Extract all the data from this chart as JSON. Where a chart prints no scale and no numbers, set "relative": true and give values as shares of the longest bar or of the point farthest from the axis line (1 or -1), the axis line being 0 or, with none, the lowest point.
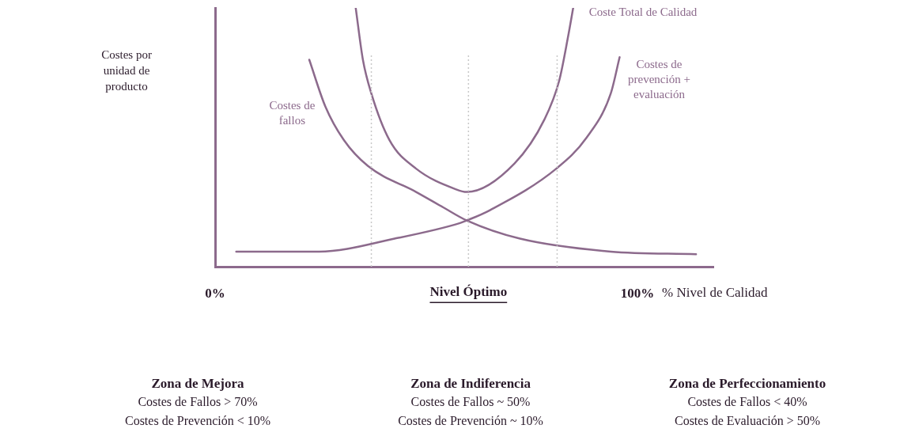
{
  "chart_data": {
    "type": "line",
    "relative": true,
    "xlabel": "% Nivel de Calidad",
    "ylabel": "Costes por unidad de producto",
    "xlim": [
      0,
      118
    ],
    "xticks": [
      {
        "value": 0,
        "label": "0%"
      },
      {
        "value": 100,
        "label": "100%"
      }
    ],
    "tick_labels": "x",
    "grid": false,
    "legend": false,
    "marker": "none",
    "line_style": "solid",
    "series": [
      {
        "name": "Costes de fallos",
        "color": "#8c6a8c",
        "x": [
          22.3,
          26.1,
          30.5,
          36.2,
          47.6,
          54.1,
          59.6,
          72.2,
          93.7,
          113.9
        ],
        "values": [
          0.8,
          0.62,
          0.49,
          0.39,
          0.29,
          0.23,
          0.18,
          0.11,
          0.06,
          0.05
        ]
      },
      {
        "name": "Coste Total de Calidad",
        "color": "#8c6a8c",
        "x": [
          33.3,
          35,
          37,
          41.3,
          47.6,
          57.1,
          59.6,
          70.9,
          78,
          81.5,
          83.6,
          84.8
        ],
        "values": [
          1,
          0.8,
          0.67,
          0.49,
          0.38,
          0.3,
          0.29,
          0.4,
          0.57,
          0.72,
          0.89,
          1
        ]
      },
      {
        "name": "Costes de prevención + evaluación",
        "color": "#8c6a8c",
        "x": [
          5,
          24.6,
          42.5,
          58,
          59.6,
          65.1,
          80.8,
          88,
          93.7,
          95.8
        ],
        "values": [
          0.06,
          0.06,
          0.11,
          0.17,
          0.18,
          0.22,
          0.38,
          0.5,
          0.67,
          0.81
        ]
      }
    ],
    "ref_lines": [
      {
        "axis": "x",
        "value": 37,
        "color": "#c8c8c8",
        "line_style": "dotted"
      },
      {
        "axis": "x",
        "value": 60,
        "label": "Nivel Óptimo",
        "color": "#c8c8c8",
        "line_style": "dotted"
      },
      {
        "axis": "x",
        "value": 81,
        "color": "#c8c8c8",
        "line_style": "dotted"
      }
    ],
    "annotations": [
      "Zona de Mejora",
      "Costes de Fallos > 70%",
      "Costes de Prevención < 10%",
      "Zona de Indiferencia",
      "Costes de Fallos ~ 50%",
      "Costes de Prevención ~ 10%",
      "Zona de Perfeccionamiento",
      "Costes de Fallos < 40%",
      "Costes de Evaluación > 50%"
    ]
  }
}
